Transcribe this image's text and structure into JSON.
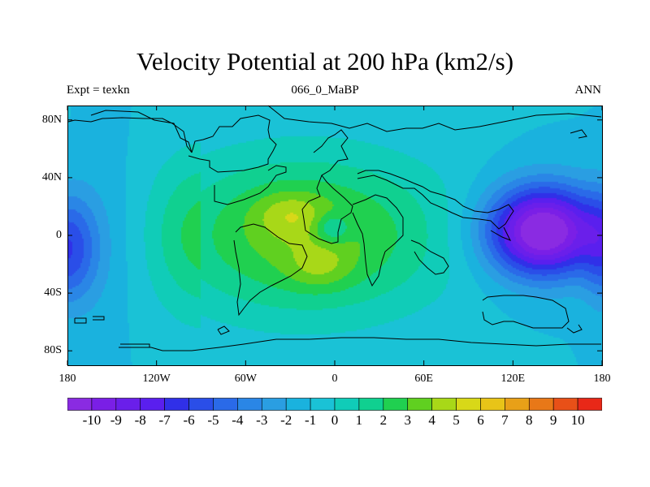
{
  "title": "Velocity Potential at 200 hPa (km2/s)",
  "subtitle_left": "Expt = texkn",
  "subtitle_center": "066_0_MaBP",
  "subtitle_right": "ANN",
  "lat_ticks": [
    {
      "label": "80N",
      "lat": 80
    },
    {
      "label": "40N",
      "lat": 40
    },
    {
      "label": "0",
      "lat": 0
    },
    {
      "label": "40S",
      "lat": -40
    },
    {
      "label": "80S",
      "lat": -80
    }
  ],
  "lon_ticks": [
    {
      "label": "180",
      "lon": -180
    },
    {
      "label": "120W",
      "lon": -120
    },
    {
      "label": "60W",
      "lon": -60
    },
    {
      "label": "0",
      "lon": 0
    },
    {
      "label": "60E",
      "lon": 60
    },
    {
      "label": "120E",
      "lon": 120
    },
    {
      "label": "180",
      "lon": 180
    }
  ],
  "colorbar": {
    "levels": [
      "-10",
      "-9",
      "-8",
      "-7",
      "-6",
      "-5",
      "-4",
      "-3",
      "-2",
      "-1",
      "0",
      "1",
      "2",
      "3",
      "4",
      "5",
      "6",
      "7",
      "8",
      "9",
      "10"
    ],
    "colors": [
      "#8a2be2",
      "#7a1fe6",
      "#6a1fea",
      "#5a1fee",
      "#3030e8",
      "#2a4ee8",
      "#2a6ae8",
      "#2a86e6",
      "#2a9ee2",
      "#1ab2de",
      "#1ac2d6",
      "#10ccb8",
      "#10d090",
      "#20d050",
      "#60d020",
      "#a8d818",
      "#d8d818",
      "#e8c418",
      "#e8a018",
      "#e87818",
      "#e85018",
      "#e82818"
    ]
  },
  "chart_data": {
    "type": "heatmap",
    "title": "Velocity Potential at 200 hPa (km2/s)",
    "variable": "Velocity Potential",
    "units": "km2/s",
    "level": "200 hPa",
    "experiment": "texkn",
    "case": "066_0_MaBP",
    "season": "ANN",
    "xlim": [
      -180,
      180
    ],
    "ylim": [
      -90,
      90
    ],
    "contour_range": [
      -10,
      10
    ],
    "contour_interval": 1,
    "features": [
      {
        "type": "minimum",
        "lon": 135,
        "lat": 5,
        "value": -10
      },
      {
        "type": "minimum",
        "lon": -180,
        "lat": -10,
        "value": -5
      },
      {
        "type": "maximum",
        "lon": -30,
        "lat": 15,
        "value": 5
      },
      {
        "type": "maximum",
        "lon": -10,
        "lat": -20,
        "value": 5
      }
    ]
  }
}
